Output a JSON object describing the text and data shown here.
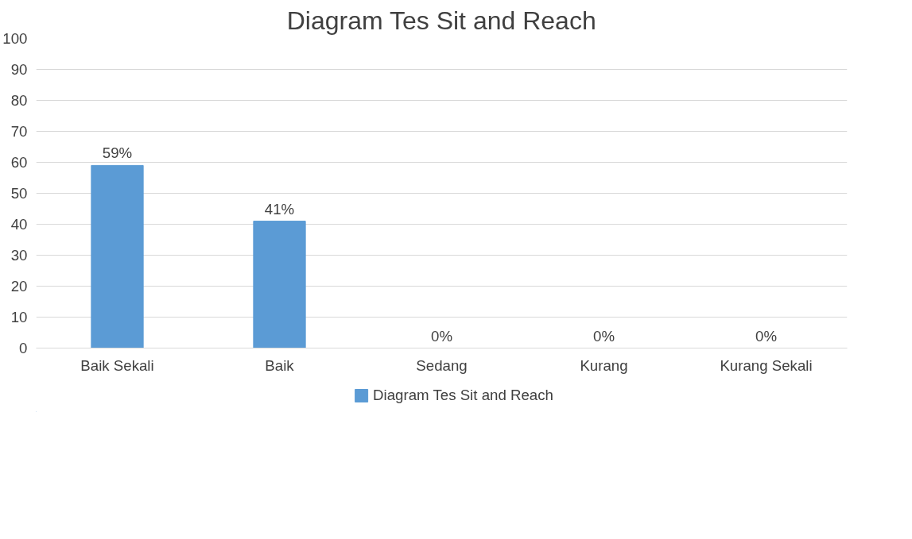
{
  "chart_data": {
    "type": "bar",
    "title": "Diagram Tes Sit and Reach",
    "categories": [
      "Baik Sekali",
      "Baik",
      "Sedang",
      "Kurang",
      "Kurang Sekali"
    ],
    "series": [
      {
        "name": "Diagram Tes Sit and Reach",
        "color": "#5b9bd5",
        "values": [
          59,
          41,
          0,
          0,
          0
        ],
        "value_labels": [
          "59%",
          "41%",
          "0%",
          "0%",
          "0%"
        ]
      }
    ],
    "ylim": [
      0,
      100
    ],
    "yticks": [
      0,
      10,
      20,
      30,
      40,
      50,
      60,
      70,
      80,
      90,
      100
    ],
    "grid": "y",
    "legend": "bottom"
  }
}
